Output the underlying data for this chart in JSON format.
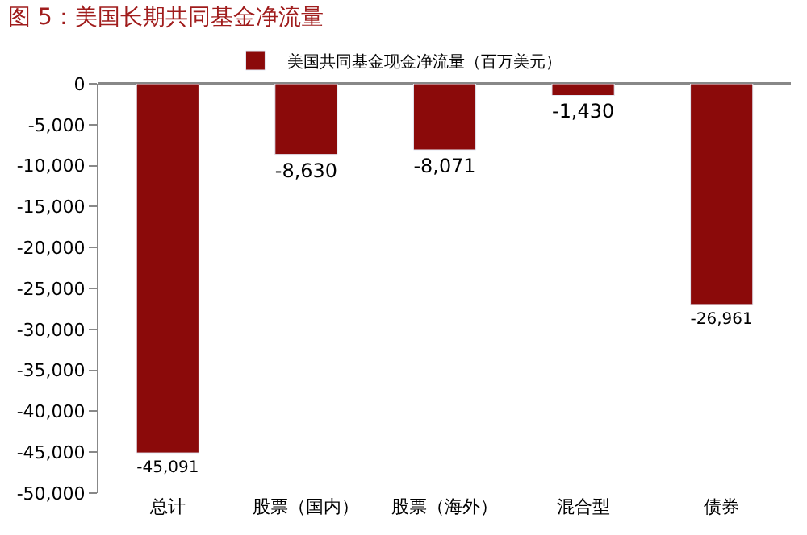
{
  "chart_data": {
    "type": "bar",
    "title": "图 5：美国长期共同基金净流量",
    "categories": [
      "总计",
      "股票（国内）",
      "股票（海外）",
      "混合型",
      "债券"
    ],
    "series": [
      {
        "name": "美国共同基金现金净流量（百万美元）",
        "color": "#8b0a0a",
        "values": [
          -45091,
          -8630,
          -8071,
          -1430,
          -26961
        ],
        "value_labels": [
          "-45,091",
          "-8,630",
          "-8,071",
          "-1,430",
          "-26,961"
        ]
      }
    ],
    "ylim": [
      -50000,
      0
    ],
    "yticks": [
      {
        "value": -50000,
        "label": "-50,000"
      },
      {
        "value": -45000,
        "label": "-45,000"
      },
      {
        "value": -40000,
        "label": "-40,000"
      },
      {
        "value": -35000,
        "label": "-35,000"
      },
      {
        "value": -30000,
        "label": "-30,000"
      },
      {
        "value": -25000,
        "label": "-25,000"
      },
      {
        "value": -20000,
        "label": "-20,000"
      },
      {
        "value": -15000,
        "label": "-15,000"
      },
      {
        "value": -10000,
        "label": "-10,000"
      },
      {
        "value": -5000,
        "label": "-5,000"
      },
      0
    ],
    "legend": "top"
  }
}
